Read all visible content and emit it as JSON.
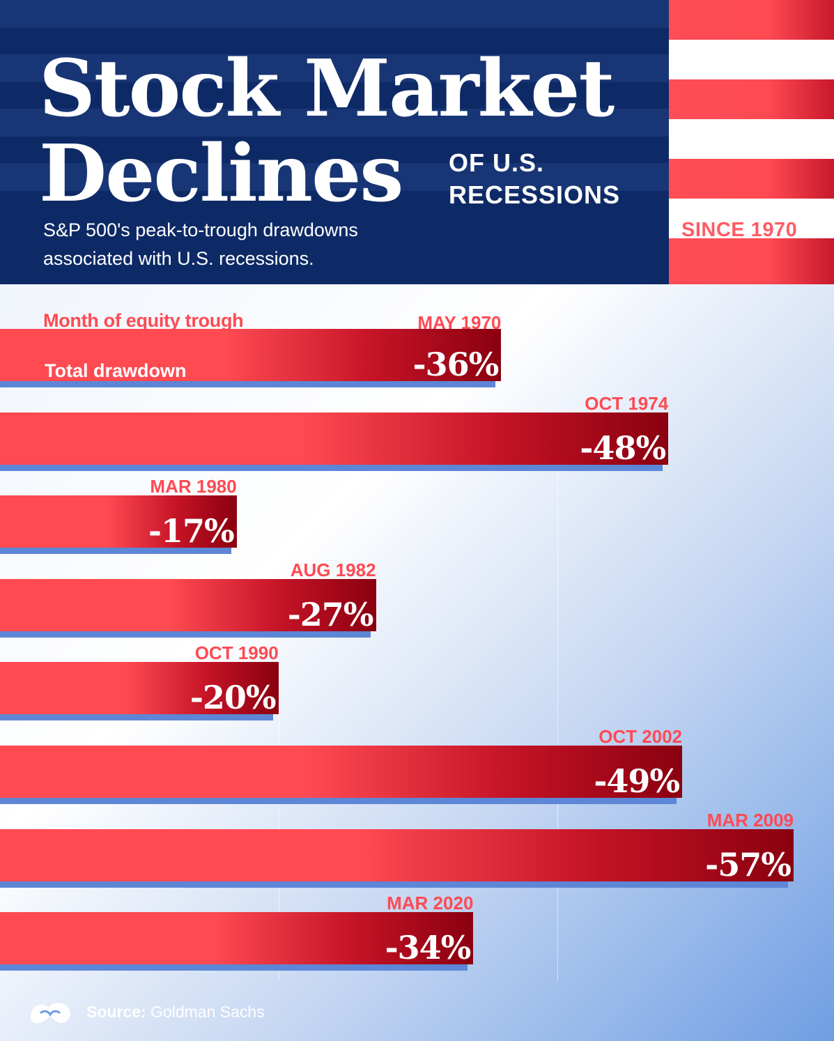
{
  "header": {
    "title_line1": "Stock Market",
    "title_line2": "Declines",
    "tag_line1": "OF U.S.",
    "tag_line2": "RECESSIONS",
    "subtitle_line1": "S&P 500's peak-to-trough drawdowns",
    "subtitle_line2": "associated with U.S. recessions.",
    "since": "SINCE 1970"
  },
  "legend": {
    "month_label": "Month of equity trough",
    "total_label": "Total drawdown"
  },
  "chart_data": {
    "type": "bar",
    "orientation": "horizontal",
    "title": "Stock Market Declines of U.S. Recessions",
    "subtitle": "S&P 500's peak-to-trough drawdowns associated with U.S. recessions.",
    "value_unit": "%",
    "xlim": [
      0,
      60
    ],
    "categories": [
      "MAY 1970",
      "OCT 1974",
      "MAR 1980",
      "AUG 1982",
      "OCT 1990",
      "OCT 2002",
      "MAR 2009",
      "MAR 2020"
    ],
    "values": [
      -36,
      -48,
      -17,
      -27,
      -20,
      -49,
      -57,
      -34
    ],
    "labels": [
      "-36%",
      "-48%",
      "-17%",
      "-27%",
      "-20%",
      "-49%",
      "-57%",
      "-34%"
    ]
  },
  "colors": {
    "navy": "#0e2a66",
    "red": "#ff4a52",
    "dark_red": "#8a0010",
    "shadow_blue": "#5d86d6"
  },
  "footer": {
    "logo_icon": "visual-capitalist-logo-icon",
    "source_label": "Source:",
    "source_value": "Goldman Sachs"
  }
}
